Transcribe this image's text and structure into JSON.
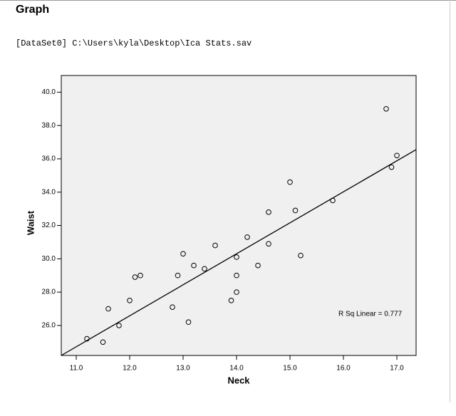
{
  "header": {
    "title": "Graph",
    "dataset": "[DataSet0] C:\\Users\\kyla\\Desktop\\Ica Stats.sav"
  },
  "chart_data": {
    "type": "scatter",
    "x_label": "Neck",
    "y_label": "Waist",
    "x": [
      11.2,
      11.5,
      11.6,
      11.8,
      12.0,
      12.1,
      12.2,
      12.8,
      12.9,
      13.0,
      13.1,
      13.2,
      13.4,
      13.6,
      13.9,
      14.0,
      14.0,
      14.0,
      14.2,
      14.4,
      14.6,
      14.6,
      15.0,
      15.1,
      15.2,
      15.8,
      16.8,
      16.9,
      17.0
    ],
    "y": [
      25.2,
      25.0,
      27.0,
      26.0,
      27.5,
      28.9,
      29.0,
      27.1,
      29.0,
      30.3,
      26.2,
      29.6,
      29.4,
      30.8,
      27.5,
      30.1,
      29.0,
      28.0,
      31.3,
      29.6,
      32.8,
      30.9,
      34.6,
      32.9,
      30.2,
      33.5,
      39.0,
      35.5,
      36.2
    ],
    "fit_line": {
      "x": [
        10.72,
        17.36
      ],
      "y": [
        24.2,
        36.55
      ]
    },
    "annotation": "R Sq Linear = 0.777",
    "xlim": [
      10.72,
      17.36
    ],
    "ylim": [
      24.2,
      41.0
    ],
    "xticks": [
      {
        "value": 11,
        "label": "11.0"
      },
      {
        "value": 12,
        "label": "12.0"
      },
      {
        "value": 13,
        "label": "13.0"
      },
      {
        "value": 14,
        "label": "14.0"
      },
      {
        "value": 15,
        "label": "15.0"
      },
      {
        "value": 16,
        "label": "16.0"
      },
      {
        "value": 17,
        "label": "17.0"
      }
    ],
    "yticks": [
      {
        "value": 26,
        "label": "26.0"
      },
      {
        "value": 28,
        "label": "28.0"
      },
      {
        "value": 30,
        "label": "30.0"
      },
      {
        "value": 32,
        "label": "32.0"
      },
      {
        "value": 34,
        "label": "34.0"
      },
      {
        "value": 36,
        "label": "36.0"
      },
      {
        "value": 38,
        "label": "38.0"
      },
      {
        "value": 40,
        "label": "40.0"
      }
    ],
    "plot_background": "#f0f0f0",
    "marker_color": "#000000",
    "line_color": "#000000"
  }
}
